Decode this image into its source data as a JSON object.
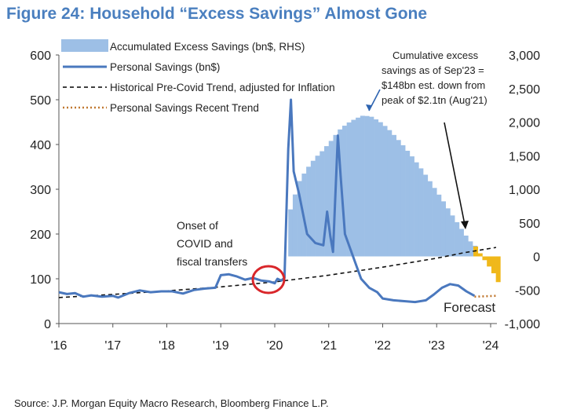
{
  "figure": {
    "title": "Figure 24: Household “Excess Savings” Almost Gone",
    "source": "Source: J.P. Morgan Equity Macro Research, Bloomberg Finance L.P."
  },
  "chart_data": {
    "type": "line",
    "x_ticks": [
      "'16",
      "'17",
      "'18",
      "'19",
      "'20",
      "'21",
      "'22",
      "'23",
      "'24"
    ],
    "left_axis": {
      "ticks": [
        "0",
        "100",
        "200",
        "300",
        "400",
        "500",
        "600"
      ],
      "ylim": [
        0,
        600
      ]
    },
    "right_axis": {
      "ticks": [
        "-1,000",
        "-500",
        "0",
        "500",
        "1,000",
        "1,500",
        "2,000",
        "2,500",
        "3,000"
      ],
      "ylim": [
        -1000,
        3000
      ]
    },
    "legend": [
      {
        "label": "Accumulated Excess Savings (bn$, RHS)",
        "style": "area",
        "color": "#9dbfe6"
      },
      {
        "label": "Personal Savings (bn$)",
        "style": "solid",
        "color": "#4a78be"
      },
      {
        "label": "Historical Pre-Covid Trend, adjusted for Inflation",
        "style": "dashed",
        "color": "#000000"
      },
      {
        "label": "Personal Savings Recent Trend",
        "style": "dotted",
        "color": "#c07830"
      }
    ],
    "series": [
      {
        "name": "Personal Savings (bn$)",
        "axis": "left",
        "points": [
          [
            2016.0,
            70
          ],
          [
            2016.15,
            66
          ],
          [
            2016.3,
            68
          ],
          [
            2016.45,
            60
          ],
          [
            2016.6,
            63
          ],
          [
            2016.8,
            60
          ],
          [
            2017.0,
            62
          ],
          [
            2017.1,
            58
          ],
          [
            2017.3,
            68
          ],
          [
            2017.5,
            74
          ],
          [
            2017.7,
            70
          ],
          [
            2017.9,
            72
          ],
          [
            2018.1,
            72
          ],
          [
            2018.3,
            67
          ],
          [
            2018.5,
            75
          ],
          [
            2018.7,
            78
          ],
          [
            2018.9,
            80
          ],
          [
            2019.0,
            108
          ],
          [
            2019.15,
            110
          ],
          [
            2019.3,
            105
          ],
          [
            2019.45,
            98
          ],
          [
            2019.6,
            102
          ],
          [
            2019.75,
            96
          ],
          [
            2019.9,
            94
          ],
          [
            2020.0,
            90
          ],
          [
            2020.05,
            100
          ],
          [
            2020.12,
            96
          ],
          [
            2020.18,
            102
          ],
          [
            2020.25,
            390
          ],
          [
            2020.3,
            500
          ],
          [
            2020.35,
            340
          ],
          [
            2020.45,
            290
          ],
          [
            2020.6,
            200
          ],
          [
            2020.75,
            180
          ],
          [
            2020.9,
            175
          ],
          [
            2020.97,
            250
          ],
          [
            2021.03,
            195
          ],
          [
            2021.08,
            160
          ],
          [
            2021.17,
            420
          ],
          [
            2021.22,
            330
          ],
          [
            2021.3,
            200
          ],
          [
            2021.45,
            150
          ],
          [
            2021.6,
            100
          ],
          [
            2021.75,
            80
          ],
          [
            2021.9,
            70
          ],
          [
            2022.0,
            56
          ],
          [
            2022.2,
            52
          ],
          [
            2022.4,
            50
          ],
          [
            2022.6,
            48
          ],
          [
            2022.8,
            52
          ],
          [
            2022.95,
            65
          ],
          [
            2023.1,
            80
          ],
          [
            2023.25,
            88
          ],
          [
            2023.4,
            85
          ],
          [
            2023.55,
            72
          ],
          [
            2023.7,
            62
          ]
        ]
      },
      {
        "name": "Historical Pre-Covid Trend, adjusted for Inflation",
        "axis": "left",
        "points": [
          [
            2016.0,
            58
          ],
          [
            2017.0,
            65
          ],
          [
            2018.0,
            73
          ],
          [
            2019.0,
            82
          ],
          [
            2020.0,
            93
          ],
          [
            2021.0,
            108
          ],
          [
            2022.0,
            126
          ],
          [
            2023.0,
            146
          ],
          [
            2023.5,
            158
          ],
          [
            2024.1,
            170
          ]
        ]
      },
      {
        "name": "Personal Savings Recent Trend",
        "axis": "left",
        "points": [
          [
            2023.7,
            60
          ],
          [
            2024.1,
            62
          ]
        ]
      },
      {
        "name": "Accumulated Excess Savings (bn$, RHS)",
        "axis": "right",
        "points": [
          [
            2020.25,
            700
          ],
          [
            2020.4,
            1100
          ],
          [
            2020.55,
            1300
          ],
          [
            2020.7,
            1460
          ],
          [
            2020.85,
            1580
          ],
          [
            2021.0,
            1720
          ],
          [
            2021.15,
            1880
          ],
          [
            2021.3,
            1980
          ],
          [
            2021.45,
            2050
          ],
          [
            2021.6,
            2100
          ],
          [
            2021.75,
            2080
          ],
          [
            2021.9,
            2010
          ],
          [
            2022.05,
            1910
          ],
          [
            2022.2,
            1780
          ],
          [
            2022.35,
            1640
          ],
          [
            2022.5,
            1490
          ],
          [
            2022.65,
            1330
          ],
          [
            2022.8,
            1160
          ],
          [
            2022.95,
            980
          ],
          [
            2023.1,
            800
          ],
          [
            2023.25,
            610
          ],
          [
            2023.4,
            430
          ],
          [
            2023.55,
            250
          ],
          [
            2023.68,
            148
          ]
        ]
      },
      {
        "name": "forecast",
        "axis": "right",
        "points": [
          [
            2023.68,
            148
          ],
          [
            2023.85,
            -60
          ],
          [
            2024.0,
            -230
          ],
          [
            2024.12,
            -420
          ]
        ]
      }
    ],
    "annotations": {
      "covid": "Onset of COVID and fiscal transfers",
      "cumulative": "Cumulative excess savings as of Sep'23 = $148bn est. down from peak of $2.1tn (Aug'21)",
      "forecast": "Forecast"
    }
  },
  "colors": {
    "area": "#9dbfe6",
    "line": "#4a78be",
    "forecast": "#f0b81a",
    "circle": "#d9262a",
    "title": "#4a7fbf"
  }
}
